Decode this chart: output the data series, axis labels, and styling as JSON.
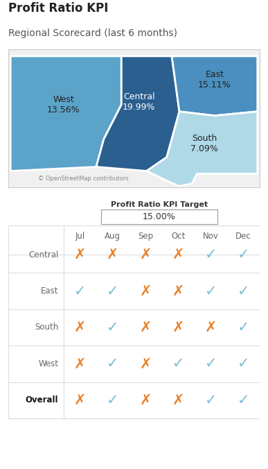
{
  "title": "Profit Ratio KPI",
  "subtitle": "Regional Scorecard (last 6 months)",
  "map_regions": [
    "West",
    "Central",
    "East",
    "South"
  ],
  "map_values": [
    "13.56%",
    "19.99%",
    "15.11%",
    "7.09%"
  ],
  "map_colors": [
    "#5ba3c9",
    "#2b5f8f",
    "#4a8fbf",
    "#b0d9e8"
  ],
  "map_copyright": "© OpenStreetMap contributors",
  "kpi_target_label": "Profit Ratio KPI Target",
  "kpi_target_value": "15.00%",
  "months": [
    "Jul",
    "Aug",
    "Sep",
    "Oct",
    "Nov",
    "Dec"
  ],
  "rows": [
    "Central",
    "East",
    "South",
    "West"
  ],
  "overall_row": "Overall",
  "grid_data": {
    "Central": [
      "X",
      "X",
      "X",
      "X",
      "V",
      "V"
    ],
    "East": [
      "V",
      "V",
      "X",
      "X",
      "V",
      "V"
    ],
    "South": [
      "X",
      "V",
      "X",
      "X",
      "X",
      "V"
    ],
    "West": [
      "X",
      "V",
      "X",
      "V",
      "V",
      "V"
    ],
    "Overall": [
      "X",
      "V",
      "X",
      "X",
      "V",
      "V"
    ]
  },
  "check_color": "#7bbdd4",
  "cross_color": "#e8822a",
  "header_color": "#666666",
  "row_label_color": "#666666",
  "overall_label_color": "#111111",
  "background_color": "#ffffff",
  "grid_line_color": "#dddddd",
  "border_color": "#cccccc",
  "map_bg": "#f0f0f0"
}
